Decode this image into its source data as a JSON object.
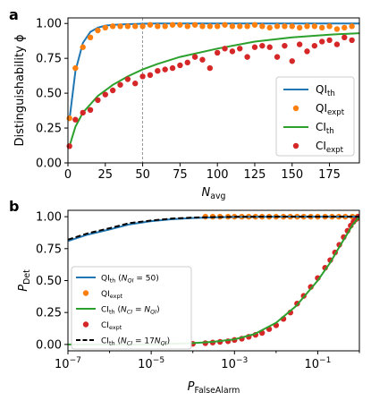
{
  "chart_data": [
    {
      "type": "line",
      "panel_label": "a",
      "xlabel": {
        "base": "N",
        "sub": "avg"
      },
      "ylabel": "Distinguishability ϕ",
      "xlim": [
        0,
        195
      ],
      "ylim": [
        0,
        1.04
      ],
      "x_ticks": [
        0,
        25,
        50,
        75,
        100,
        125,
        150,
        175
      ],
      "y_ticks": [
        0.0,
        0.25,
        0.5,
        0.75,
        1.0
      ],
      "x_tick_labels": [
        "0",
        "25",
        "50",
        "75",
        "100",
        "125",
        "150",
        "175"
      ],
      "y_tick_labels": [
        "0.00",
        "0.25",
        "0.50",
        "0.75",
        "1.00"
      ],
      "vline": {
        "x": 50,
        "style": "dashed",
        "color": "#7f7f7f"
      },
      "legend": "center-right",
      "series": [
        {
          "name": "QI",
          "sub": "th",
          "kind": "line",
          "color": "#1f77b4",
          "x": [
            1,
            5,
            10,
            15,
            20,
            25,
            30,
            40,
            50,
            60,
            80,
            100,
            125,
            150,
            175,
            195
          ],
          "y": [
            0.31,
            0.66,
            0.86,
            0.94,
            0.97,
            0.985,
            0.99,
            0.995,
            0.998,
            1.0,
            1.0,
            1.0,
            1.0,
            1.0,
            1.0,
            1.0
          ]
        },
        {
          "name": "QI",
          "sub": "expt",
          "kind": "scatter",
          "color": "#ff7f0e",
          "x": [
            1,
            5,
            10,
            15,
            20,
            25,
            30,
            35,
            40,
            45,
            50,
            55,
            60,
            65,
            70,
            75,
            80,
            85,
            90,
            95,
            100,
            105,
            110,
            115,
            120,
            125,
            130,
            135,
            140,
            145,
            150,
            155,
            160,
            165,
            170,
            175,
            180,
            185,
            190
          ],
          "y": [
            0.32,
            0.68,
            0.83,
            0.9,
            0.95,
            0.97,
            0.98,
            0.98,
            0.98,
            0.98,
            0.98,
            0.99,
            0.98,
            0.98,
            0.99,
            0.99,
            0.98,
            0.99,
            0.98,
            0.98,
            0.98,
            0.99,
            0.98,
            0.98,
            0.98,
            0.99,
            0.98,
            0.97,
            0.98,
            0.98,
            0.98,
            0.97,
            0.98,
            0.98,
            0.97,
            0.98,
            0.96,
            0.97,
            0.98
          ]
        },
        {
          "name": "CI",
          "sub": "th",
          "kind": "line",
          "color": "#2ca02c",
          "x": [
            1,
            5,
            10,
            20,
            30,
            40,
            50,
            60,
            75,
            100,
            125,
            150,
            175,
            195
          ],
          "y": [
            0.12,
            0.26,
            0.36,
            0.48,
            0.56,
            0.62,
            0.67,
            0.71,
            0.76,
            0.82,
            0.87,
            0.9,
            0.92,
            0.93
          ]
        },
        {
          "name": "CI",
          "sub": "expt",
          "kind": "scatter",
          "color": "#d62728",
          "x": [
            1,
            5,
            10,
            15,
            20,
            25,
            30,
            35,
            40,
            45,
            50,
            55,
            60,
            65,
            70,
            75,
            80,
            85,
            90,
            95,
            100,
            105,
            110,
            115,
            120,
            125,
            130,
            135,
            140,
            145,
            150,
            155,
            160,
            165,
            170,
            175,
            180,
            185,
            190
          ],
          "y": [
            0.12,
            0.31,
            0.36,
            0.38,
            0.45,
            0.49,
            0.52,
            0.56,
            0.6,
            0.57,
            0.62,
            0.63,
            0.66,
            0.67,
            0.68,
            0.7,
            0.72,
            0.76,
            0.74,
            0.68,
            0.79,
            0.82,
            0.8,
            0.82,
            0.76,
            0.83,
            0.84,
            0.83,
            0.76,
            0.84,
            0.73,
            0.85,
            0.8,
            0.84,
            0.87,
            0.88,
            0.85,
            0.9,
            0.88
          ]
        }
      ]
    },
    {
      "type": "line",
      "panel_label": "b",
      "xlabel": {
        "base": "P",
        "sub": "FalseAlarm"
      },
      "ylabel": {
        "base": "P",
        "sub": "Det"
      },
      "x_scale": "log",
      "xlim": [
        1e-07,
        1
      ],
      "ylim": [
        -0.05,
        1.05
      ],
      "x_ticks": [
        1e-07,
        1e-05,
        0.001,
        0.1
      ],
      "x_tick_labels": [
        {
          "base": "10",
          "exp": "−7"
        },
        {
          "base": "10",
          "exp": "−5"
        },
        {
          "base": "10",
          "exp": "−3"
        },
        {
          "base": "10",
          "exp": "−1"
        }
      ],
      "y_ticks": [
        0.0,
        0.25,
        0.5,
        0.75,
        1.0
      ],
      "y_tick_labels": [
        "0.00",
        "0.25",
        "0.50",
        "0.75",
        "1.00"
      ],
      "legend": "center-left",
      "series": [
        {
          "name": "QI",
          "sub": "th",
          "note_pre": " (",
          "note_var": "N",
          "note_var_sub": "QI",
          "note_post": " = 50)",
          "kind": "line",
          "color": "#1f77b4",
          "x": [
            1e-07,
            3e-07,
            1e-06,
            3e-06,
            1e-05,
            3e-05,
            0.0001,
            0.0003,
            0.001,
            0.01,
            1
          ],
          "y": [
            0.81,
            0.86,
            0.9,
            0.94,
            0.965,
            0.98,
            0.99,
            0.995,
            0.998,
            1.0,
            1.0
          ]
        },
        {
          "name": "QI",
          "sub": "expt",
          "kind": "scatter",
          "color": "#ff7f0e",
          "x": [
            0.0002,
            0.0003,
            0.00045,
            0.0007,
            0.001,
            0.0015,
            0.0022,
            0.0032,
            0.0046,
            0.0068,
            0.01,
            0.015,
            0.022,
            0.032,
            0.046,
            0.068,
            0.1,
            0.15,
            0.22,
            0.32,
            0.46,
            0.68,
            0.9
          ],
          "y": [
            1.0,
            1.0,
            1.0,
            1.0,
            1.0,
            1.0,
            1.0,
            1.0,
            1.0,
            1.0,
            1.0,
            1.0,
            1.0,
            1.0,
            1.0,
            1.0,
            1.0,
            1.0,
            1.0,
            1.0,
            1.0,
            1.0,
            1.0
          ]
        },
        {
          "name": "CI",
          "sub": "th",
          "note_pre": " (",
          "note_var": "N",
          "note_var_sub": "CI",
          "note_mid": " = ",
          "note_var2": "N",
          "note_var2_sub": "QI",
          "note_post": ")",
          "kind": "line",
          "color": "#2ca02c",
          "x": [
            1e-07,
            1e-05,
            0.0001,
            0.0003,
            0.001,
            0.003,
            0.01,
            0.03,
            0.1,
            0.2,
            0.3,
            0.5,
            0.7,
            1
          ],
          "y": [
            0.0,
            0.0,
            0.01,
            0.02,
            0.04,
            0.08,
            0.17,
            0.3,
            0.5,
            0.64,
            0.74,
            0.86,
            0.94,
            1.0
          ]
        },
        {
          "name": "CI",
          "sub": "expt",
          "kind": "scatter",
          "color": "#d62728",
          "x": [
            0.0001,
            0.0002,
            0.0003,
            0.00045,
            0.0007,
            0.001,
            0.0015,
            0.0022,
            0.0032,
            0.0046,
            0.0068,
            0.01,
            0.015,
            0.022,
            0.032,
            0.046,
            0.068,
            0.1,
            0.15,
            0.2,
            0.26,
            0.33,
            0.42,
            0.52,
            0.62,
            0.72,
            0.82,
            0.9,
            0.96
          ],
          "y": [
            0.005,
            0.01,
            0.015,
            0.02,
            0.025,
            0.035,
            0.045,
            0.06,
            0.075,
            0.09,
            0.12,
            0.15,
            0.2,
            0.25,
            0.32,
            0.38,
            0.45,
            0.52,
            0.6,
            0.66,
            0.72,
            0.78,
            0.84,
            0.89,
            0.93,
            0.96,
            0.98,
            0.99,
            1.0
          ]
        },
        {
          "name": "CI",
          "sub": "th",
          "note_pre": " (",
          "note_var": "N",
          "note_var_sub": "CI",
          "note_mid": " = 17",
          "note_var2": "N",
          "note_var2_sub": "QI",
          "note_post": ")",
          "kind": "line",
          "dash": true,
          "color": "#000000",
          "x": [
            1e-07,
            3e-07,
            1e-06,
            3e-06,
            1e-05,
            3e-05,
            0.0001,
            0.0003,
            0.001,
            0.01,
            1
          ],
          "y": [
            0.82,
            0.87,
            0.91,
            0.95,
            0.97,
            0.985,
            0.993,
            0.997,
            0.999,
            1.0,
            1.0
          ]
        }
      ]
    }
  ]
}
